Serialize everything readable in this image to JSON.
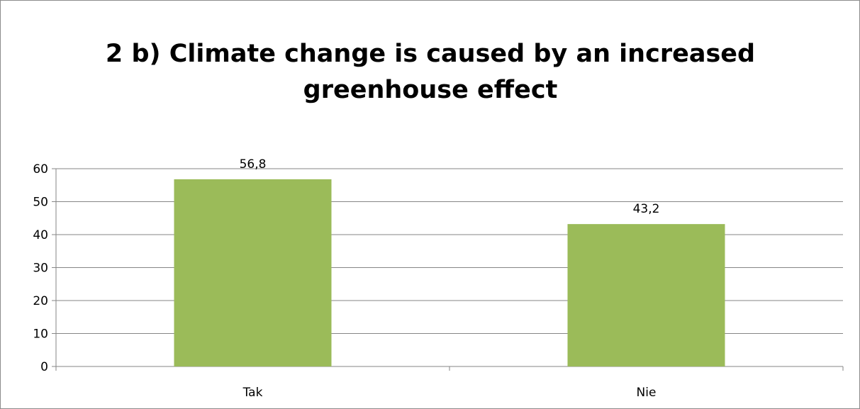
{
  "chart_data": {
    "type": "bar",
    "title_lines": [
      "2 b) Climate change is caused by an increased",
      "greenhouse effect"
    ],
    "categories": [
      "Tak",
      "Nie"
    ],
    "values": [
      56.8,
      43.2
    ],
    "data_labels": [
      "56,8",
      "43,2"
    ],
    "ylim": [
      0,
      60
    ],
    "yticks": [
      "0",
      "10",
      "20",
      "30",
      "40",
      "50",
      "60"
    ],
    "xlabel": "",
    "ylabel": "",
    "grid": true,
    "legend": "none",
    "bar_color": "#9bbb59",
    "gridline_color": "#868686"
  }
}
